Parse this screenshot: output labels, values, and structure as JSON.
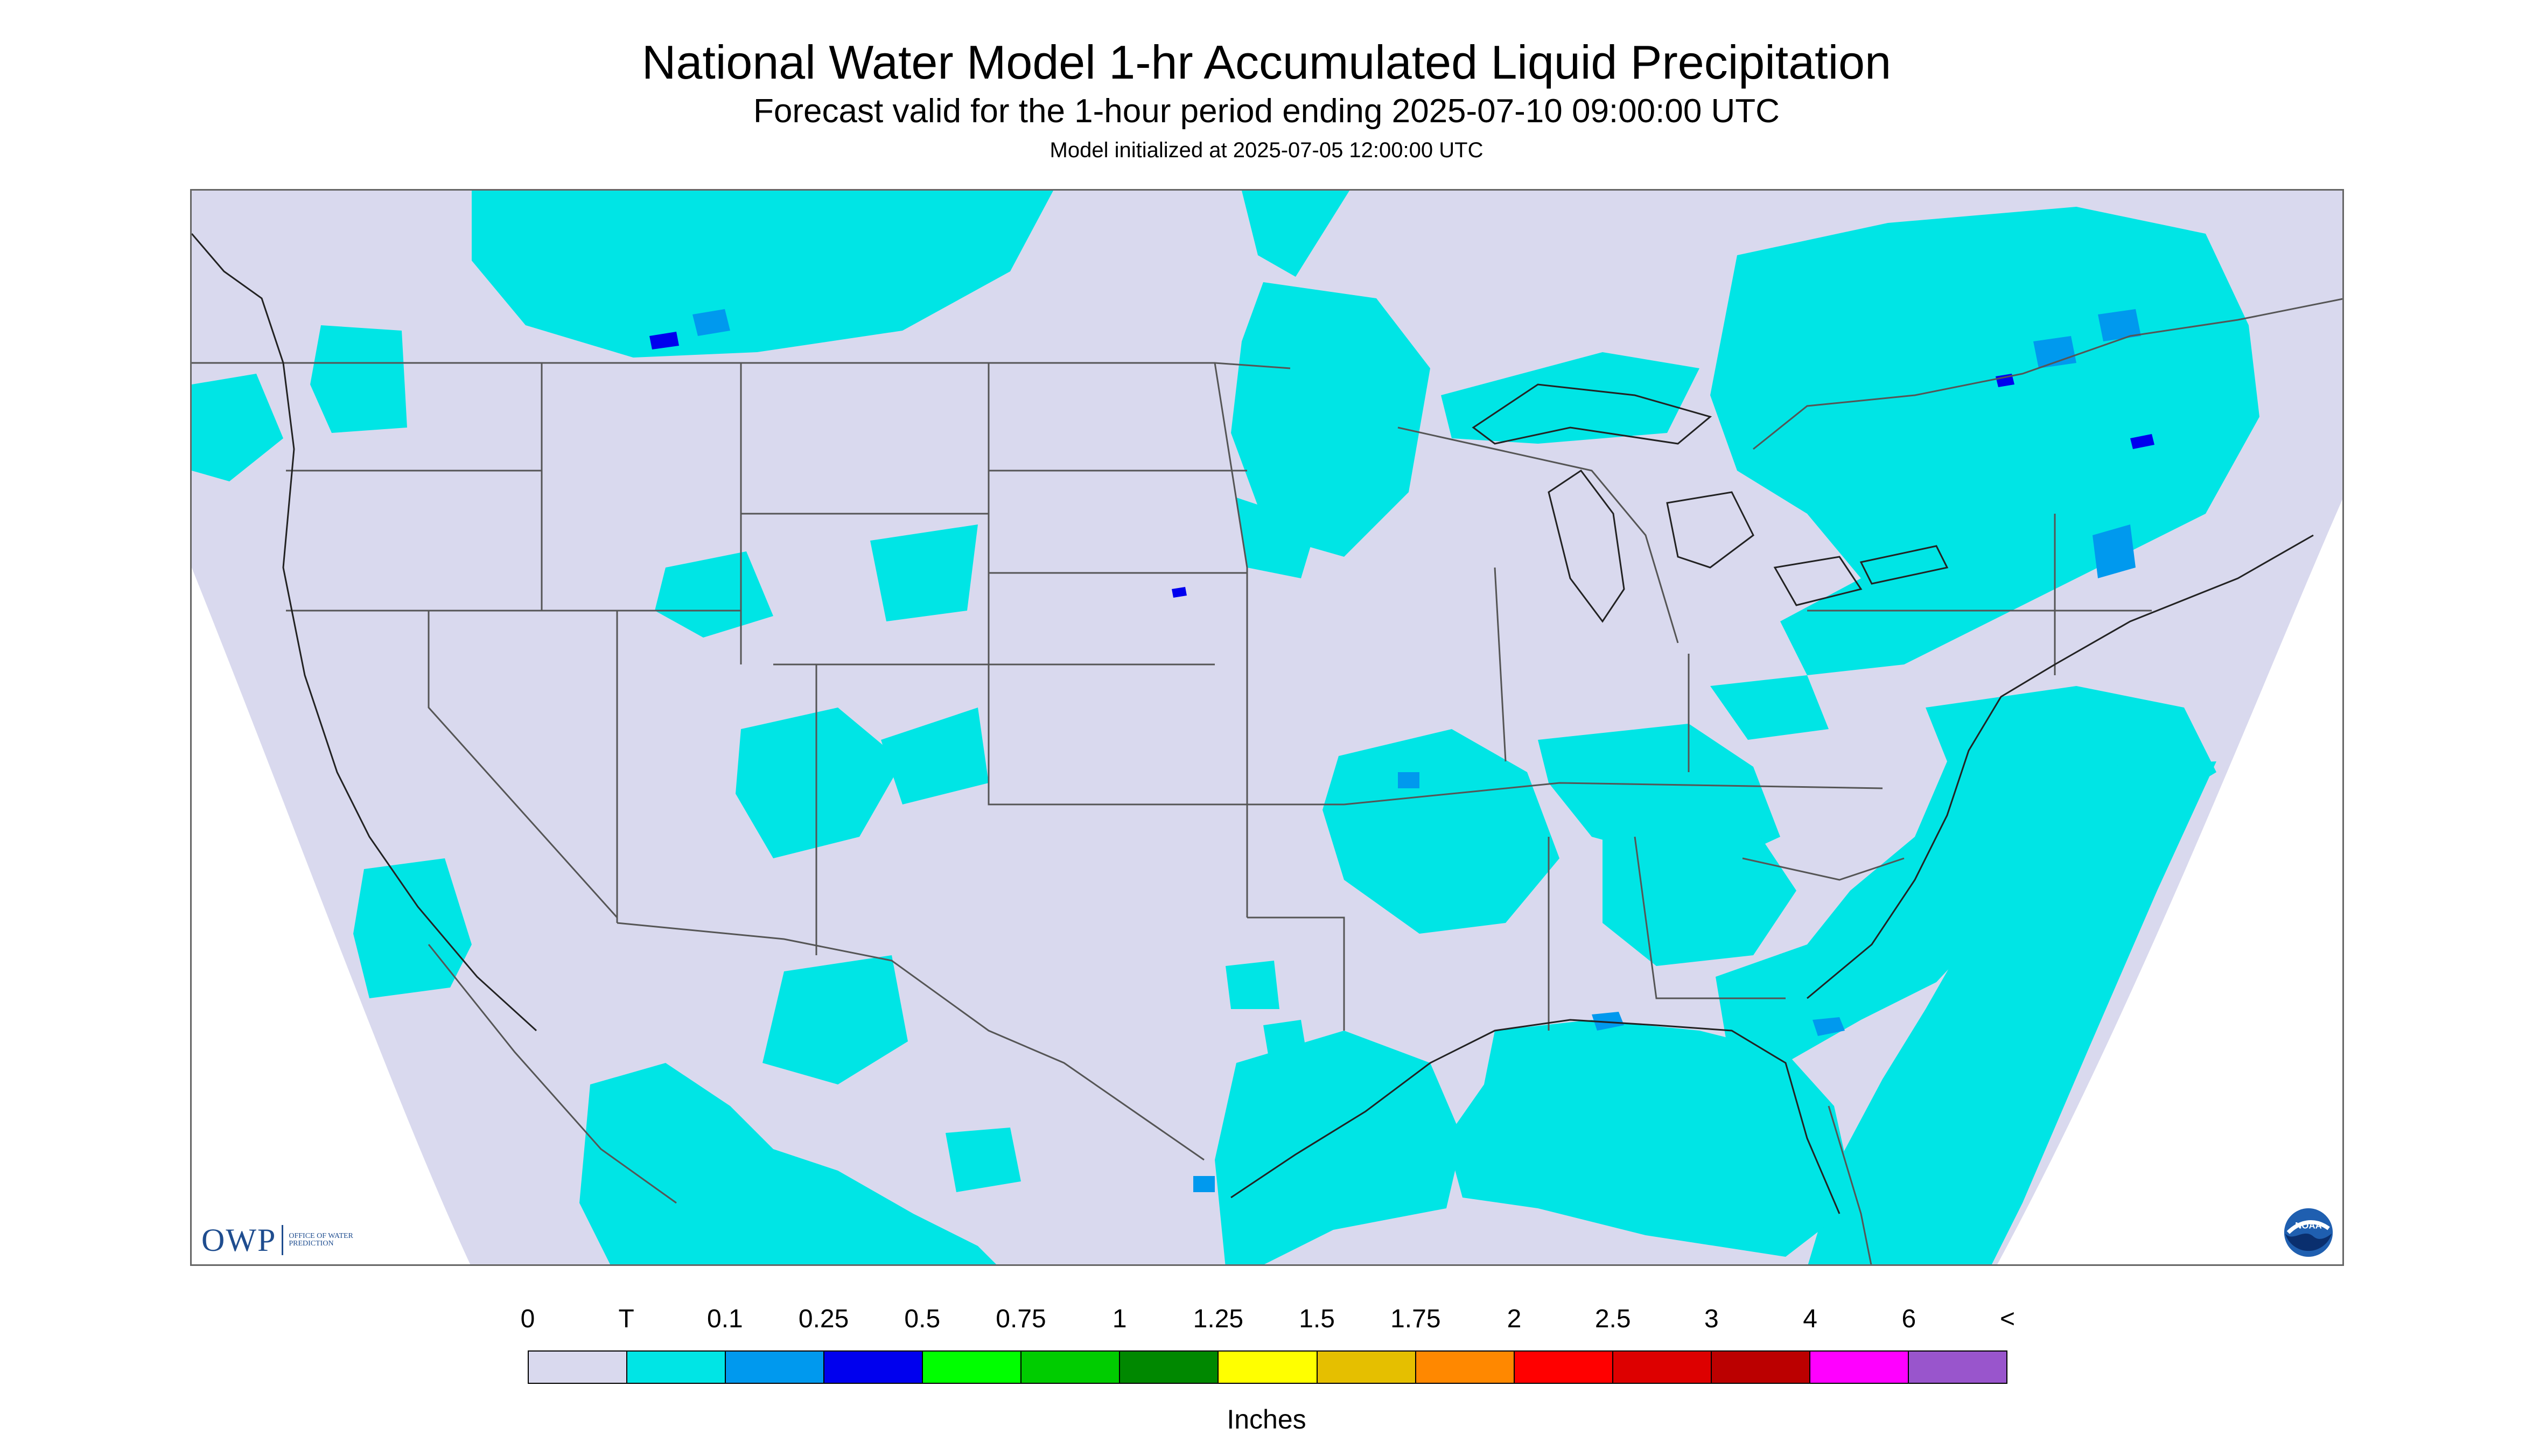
{
  "header": {
    "title": "National Water Model 1-hr Accumulated Liquid Precipitation",
    "subtitle": "Forecast valid for the 1-hour period ending 2025-07-10 09:00:00 UTC",
    "init": "Model initialized at 2025-07-05 12:00:00 UTC"
  },
  "map": {
    "colors": {
      "background_land": "#d9d9ee",
      "outside_domain": "#ffffff",
      "trace": "#00e5e5",
      "light": "#0099ee",
      "moderate": "#0000ee",
      "borders": "#555555"
    }
  },
  "logos": {
    "owp_mark": "OWP",
    "owp_text": "OFFICE OF WATER PREDICTION",
    "noaa_text": "NOAA"
  },
  "legend": {
    "labels": [
      "0",
      "T",
      "0.1",
      "0.25",
      "0.5",
      "0.75",
      "1",
      "1.25",
      "1.5",
      "1.75",
      "2",
      "2.5",
      "3",
      "4",
      "6",
      "<"
    ],
    "colors": [
      "#d9d9ee",
      "#00e5e5",
      "#0099ee",
      "#0000ee",
      "#00ff00",
      "#00cc00",
      "#008800",
      "#ffff00",
      "#e5bf00",
      "#ff8800",
      "#ff0000",
      "#dd0000",
      "#bb0000",
      "#ff00ff",
      "#9955cc"
    ],
    "units": "Inches"
  }
}
